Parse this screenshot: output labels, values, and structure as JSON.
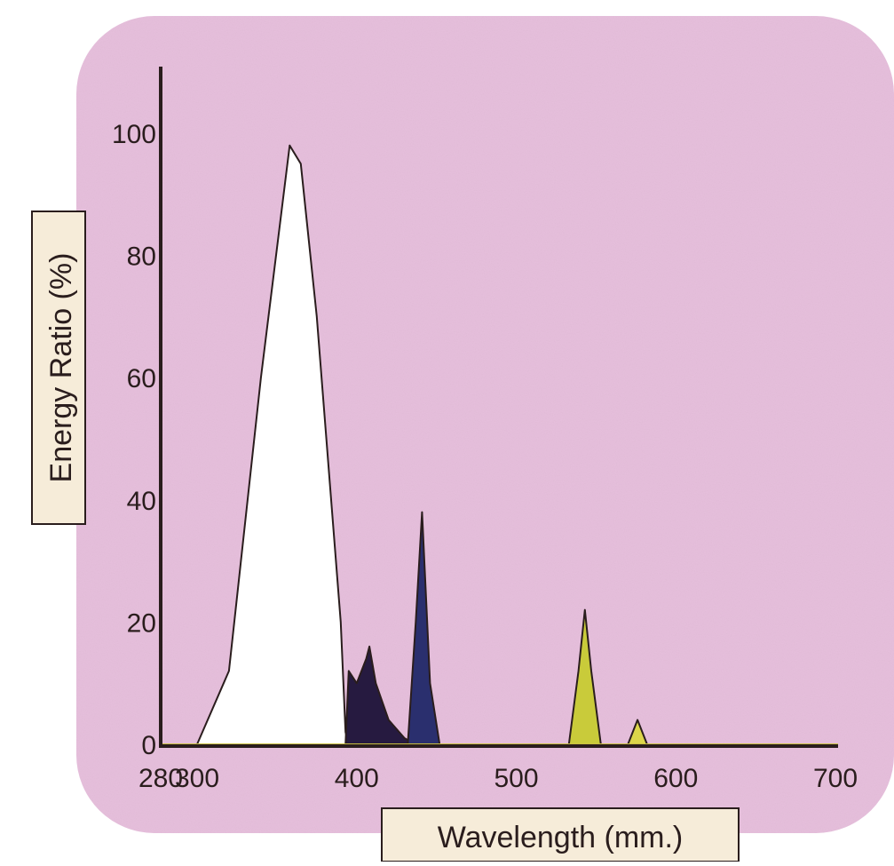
{
  "chart_data": {
    "type": "area",
    "xlabel": "Wavelength (mm.)",
    "ylabel": "Energy Ratio (%)",
    "x_ticks": [
      280,
      300,
      400,
      500,
      600,
      700
    ],
    "y_ticks": [
      0,
      20,
      40,
      60,
      80,
      100
    ],
    "xlim": [
      280,
      700
    ],
    "ylim": [
      0,
      105
    ],
    "grid": false,
    "background_color": "#e6bfdc",
    "series": [
      {
        "color": "#ffffff",
        "x": [
          300,
          320,
          340,
          358,
          365,
          375,
          390,
          393,
          395
        ],
        "y": [
          0,
          12,
          60,
          98,
          95,
          70,
          20,
          2,
          0
        ]
      },
      {
        "color": "#261a40",
        "x": [
          393,
          395,
          400,
          406,
          408,
          412,
          420,
          430,
          437
        ],
        "y": [
          0,
          12,
          10,
          14,
          16,
          10,
          4,
          1,
          0
        ]
      },
      {
        "color": "#2a2f6e",
        "x": [
          432,
          437,
          441,
          446,
          452
        ],
        "y": [
          0,
          20,
          38,
          10,
          0
        ]
      },
      {
        "color": "#c9cb3a",
        "x": [
          533,
          539,
          543,
          547,
          553
        ],
        "y": [
          0,
          12,
          22,
          12,
          0
        ]
      },
      {
        "color": "#dcd64a",
        "x": [
          570,
          576,
          582
        ],
        "y": [
          0,
          4,
          0
        ]
      }
    ]
  }
}
